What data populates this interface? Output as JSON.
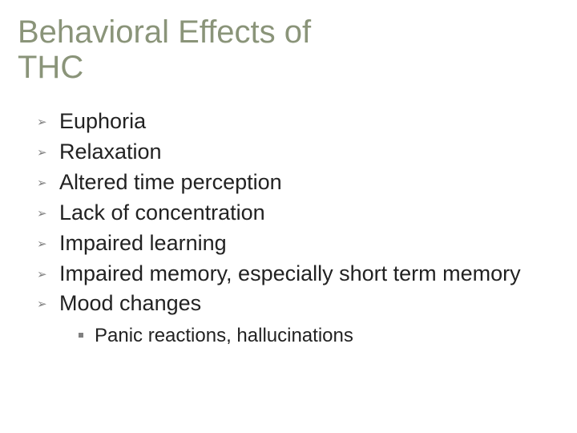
{
  "title_line1": "Behavioral Effects of",
  "title_line2": "THC",
  "title_color": "#8a9479",
  "body_color": "#222222",
  "bullet_color": "#808080",
  "background_color": "#ffffff",
  "title_fontsize": 40,
  "body_fontsize": 27,
  "sub_fontsize": 24,
  "bullets": {
    "item0": "Euphoria",
    "item1": "Relaxation",
    "item2": "Altered time perception",
    "item3": "Lack of concentration",
    "item4": "Impaired learning",
    "item5": "Impaired memory, especially short term memory",
    "item6": "Mood changes"
  },
  "sub": {
    "item0": "Panic reactions, hallucinations"
  }
}
